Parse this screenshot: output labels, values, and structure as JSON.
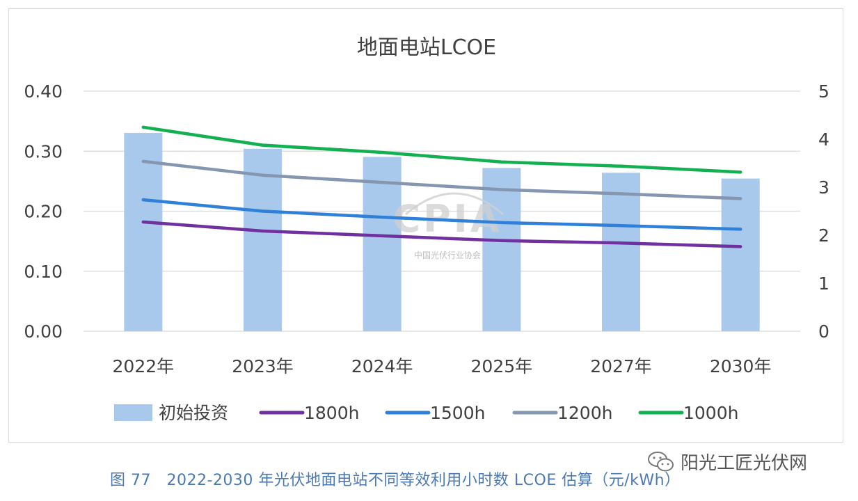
{
  "chart_data": {
    "type": "bar+line",
    "title": "地面电站LCOE",
    "categories": [
      "2022年",
      "2023年",
      "2024年",
      "2025年",
      "2027年",
      "2030年"
    ],
    "y_left": {
      "ticks": [
        "0.00",
        "0.10",
        "0.20",
        "0.30",
        "0.40"
      ],
      "ylim": [
        0,
        0.4
      ]
    },
    "y_right": {
      "ticks": [
        "0",
        "1",
        "2",
        "3",
        "4",
        "5"
      ],
      "ylim": [
        0,
        5
      ]
    },
    "grid": true,
    "legend_position": "bottom",
    "bars": {
      "name": "初始投资",
      "axis": "right",
      "color": "#a9c9ec",
      "values": [
        4.13,
        3.8,
        3.63,
        3.4,
        3.3,
        3.18
      ]
    },
    "series": [
      {
        "name": "1800h",
        "axis": "left",
        "color": "#7030a0",
        "values": [
          0.182,
          0.167,
          0.159,
          0.151,
          0.147,
          0.141
        ]
      },
      {
        "name": "1500h",
        "axis": "left",
        "color": "#2f80d8",
        "values": [
          0.219,
          0.2,
          0.19,
          0.181,
          0.176,
          0.17
        ]
      },
      {
        "name": "1200h",
        "axis": "left",
        "color": "#8496b0",
        "values": [
          0.283,
          0.26,
          0.248,
          0.236,
          0.229,
          0.221
        ]
      },
      {
        "name": "1000h",
        "axis": "left",
        "color": "#12b050",
        "values": [
          0.34,
          0.31,
          0.298,
          0.282,
          0.275,
          0.265
        ]
      }
    ]
  },
  "watermark": {
    "text": "CPIA",
    "org_cn": "中国光伏行业协会"
  },
  "caption": "图 77　2022-2030 年光伏地面电站不同等效利用小时数 LCOE 估算（元/kWh）",
  "brand": {
    "text": "阳光工匠光伏网",
    "icon": "wechat-icon"
  }
}
